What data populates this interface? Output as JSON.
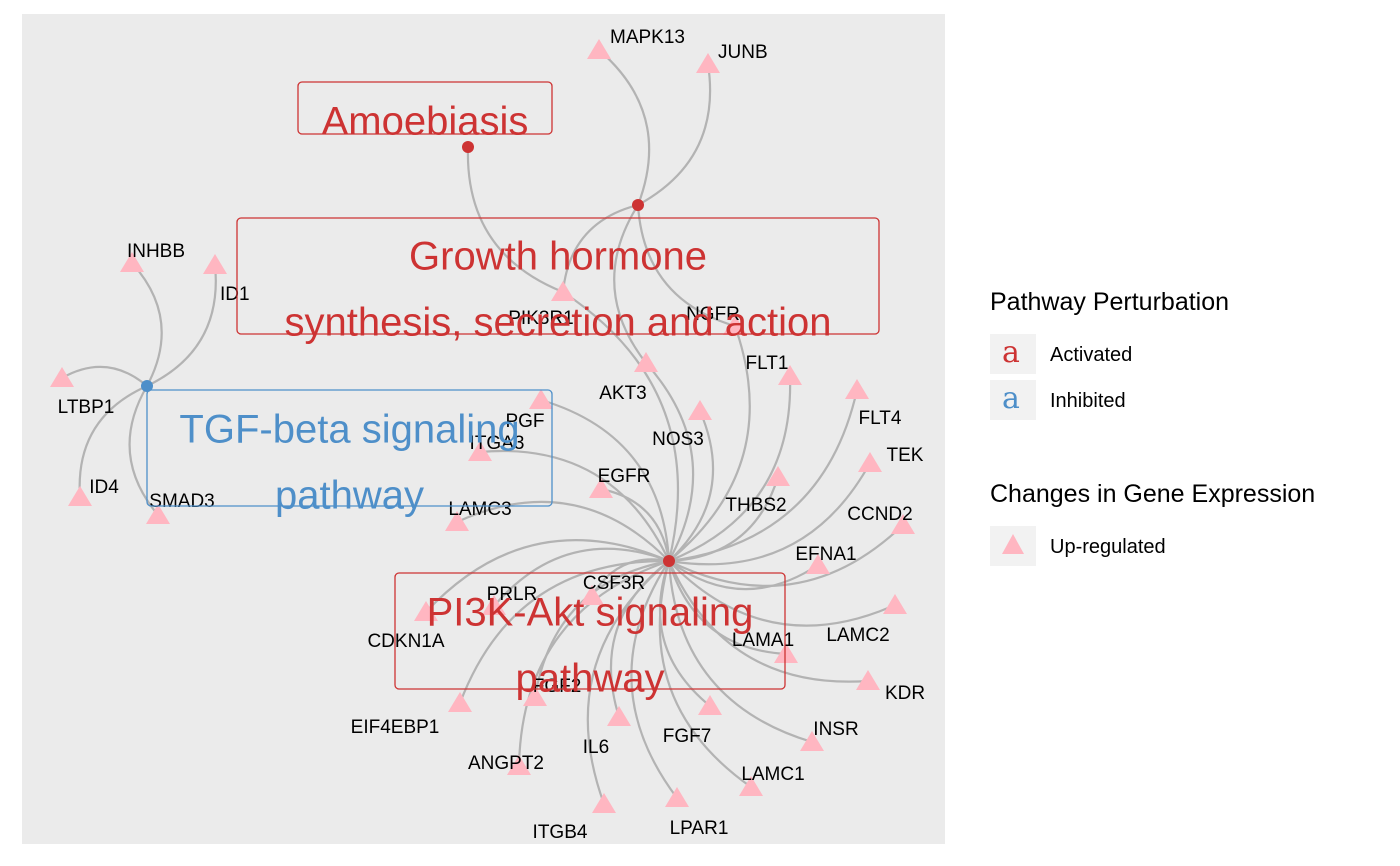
{
  "colors": {
    "panel_bg": "#ebebeb",
    "activated": "#cd3333",
    "inhibited": "#4e8fc9",
    "upregulated": "#ffb6c1",
    "edge": "#b3b3b3"
  },
  "pathways": [
    {
      "name": "Amoebiasis",
      "lines": [
        "Amoebiasis"
      ],
      "status": "Activated"
    },
    {
      "name": "Growth hormone synthesis, secretion and action",
      "lines": [
        "Growth hormone",
        "synthesis, secretion and action"
      ],
      "status": "Activated"
    },
    {
      "name": "TGF-beta signaling pathway",
      "lines": [
        "TGF-beta signaling",
        "pathway"
      ],
      "status": "Inhibited"
    },
    {
      "name": "PI3K-Akt signaling pathway",
      "lines": [
        "PI3K-Akt signaling",
        "pathway"
      ],
      "status": "Activated"
    }
  ],
  "genes": [
    "MAPK13",
    "JUNB",
    "INHBB",
    "ID1",
    "PIK3R1",
    "NGFR",
    "LTBP1",
    "AKT3",
    "FLT1",
    "FLT4",
    "PGF",
    "ITGA3",
    "NOS3",
    "TEK",
    "ID4",
    "SMAD3",
    "EGFR",
    "THBS2",
    "CCND2",
    "LAMC3",
    "EFNA1",
    "CSF3R",
    "PRLR",
    "LAMC2",
    "CDKN1A",
    "LAMA1",
    "KDR",
    "FGF2",
    "EIF4EBP1",
    "IL6",
    "FGF7",
    "INSR",
    "ANGPT2",
    "LAMC1",
    "ITGB4",
    "LPAR1"
  ],
  "links": {
    "Amoebiasis": [
      "PIK3R1"
    ],
    "Growth hormone synthesis, secretion and action": [
      "MAPK13",
      "JUNB",
      "PIK3R1",
      "NGFR",
      "AKT3"
    ],
    "TGF-beta signaling pathway": [
      "INHBB",
      "ID1",
      "LTBP1",
      "ID4",
      "SMAD3"
    ],
    "PI3K-Akt signaling pathway": [
      "PIK3R1",
      "NGFR",
      "AKT3",
      "FLT1",
      "FLT4",
      "PGF",
      "ITGA3",
      "NOS3",
      "TEK",
      "EGFR",
      "THBS2",
      "CCND2",
      "LAMC3",
      "EFNA1",
      "CSF3R",
      "PRLR",
      "LAMC2",
      "CDKN1A",
      "LAMA1",
      "KDR",
      "FGF2",
      "EIF4EBP1",
      "IL6",
      "FGF7",
      "INSR",
      "ANGPT2",
      "LAMC1",
      "ITGB4",
      "LPAR1"
    ]
  },
  "legend": {
    "pathway_title": "Pathway Perturbation",
    "pathway_glyph": "a",
    "pathway_items": [
      {
        "label": "Activated",
        "color": "#cd3333"
      },
      {
        "label": "Inhibited",
        "color": "#4e8fc9"
      }
    ],
    "gene_title": "Changes in Gene Expression",
    "gene_items": [
      {
        "label": "Up-regulated",
        "color": "#ffb6c1"
      }
    ]
  }
}
